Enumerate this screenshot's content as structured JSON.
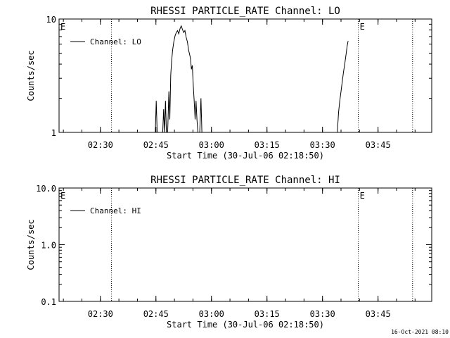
{
  "timestamp": "16-Oct-2021 08:10",
  "chart_data": [
    {
      "type": "line",
      "title": "RHESSI PARTICLE_RATE Channel: LO",
      "xlabel": "Start Time (30-Jul-06 02:18:50)",
      "ylabel": "Counts/sec",
      "yscale": "log",
      "xlim": [
        "02:18:50",
        "03:59:30"
      ],
      "ylim": [
        1,
        10
      ],
      "x_ticks": [
        "02:30",
        "02:45",
        "03:00",
        "03:15",
        "03:30",
        "03:45"
      ],
      "y_ticks": [
        "1",
        "10"
      ],
      "legend": {
        "placement": "top-left",
        "entries": [
          "Channel: LO"
        ]
      },
      "grid": false,
      "event_markers": [
        {
          "time": "02:33:00",
          "style": "dotted",
          "label": ""
        },
        {
          "time": "03:39:40",
          "style": "dotted",
          "label": "E"
        },
        {
          "time": "03:54:20",
          "style": "dotted",
          "label": ""
        },
        {
          "time": "02:18:50",
          "style": "none",
          "label": "E"
        }
      ],
      "series": [
        {
          "name": "Channel: LO",
          "segments": [
            [
              [
                "02:44:50",
                1.0
              ],
              [
                "02:45:05",
                1.9
              ],
              [
                "02:45:20",
                1.0
              ]
            ],
            [
              [
                "02:46:50",
                1.0
              ],
              [
                "02:47:05",
                1.6
              ],
              [
                "02:47:20",
                1.0
              ],
              [
                "02:47:35",
                1.9
              ],
              [
                "02:47:50",
                1.0
              ]
            ],
            [
              [
                "02:48:10",
                1.0
              ],
              [
                "02:48:30",
                2.3
              ],
              [
                "02:48:45",
                1.3
              ],
              [
                "02:49:00",
                3.2
              ],
              [
                "02:49:15",
                4.3
              ],
              [
                "02:49:30",
                5.3
              ],
              [
                "02:49:50",
                6.3
              ],
              [
                "02:50:10",
                7.1
              ],
              [
                "02:50:30",
                7.6
              ],
              [
                "02:50:50",
                7.9
              ],
              [
                "02:51:10",
                7.4
              ],
              [
                "02:51:30",
                8.2
              ],
              [
                "02:51:50",
                8.7
              ],
              [
                "02:52:10",
                8.1
              ],
              [
                "02:52:30",
                7.6
              ],
              [
                "02:52:50",
                7.9
              ],
              [
                "02:53:10",
                6.9
              ],
              [
                "02:53:30",
                6.3
              ],
              [
                "02:53:50",
                5.3
              ],
              [
                "02:54:05",
                4.9
              ],
              [
                "02:54:20",
                4.5
              ],
              [
                "02:54:35",
                3.6
              ],
              [
                "02:54:50",
                3.9
              ],
              [
                "02:55:05",
                2.6
              ],
              [
                "02:55:20",
                1.9
              ],
              [
                "02:55:35",
                1.3
              ],
              [
                "02:55:50",
                1.9
              ],
              [
                "02:56:05",
                1.3
              ],
              [
                "02:56:20",
                1.0
              ]
            ],
            [
              [
                "02:56:50",
                1.0
              ],
              [
                "02:57:10",
                2.0
              ],
              [
                "02:57:25",
                1.0
              ]
            ],
            [
              [
                "03:34:00",
                1.0
              ],
              [
                "03:34:20",
                1.5
              ],
              [
                "03:34:40",
                1.9
              ],
              [
                "03:35:00",
                2.3
              ],
              [
                "03:35:20",
                2.8
              ],
              [
                "03:35:40",
                3.4
              ],
              [
                "03:36:00",
                4.0
              ],
              [
                "03:36:20",
                4.8
              ],
              [
                "03:36:40",
                5.8
              ],
              [
                "03:36:55",
                6.4
              ]
            ]
          ]
        }
      ]
    },
    {
      "type": "line",
      "title": "RHESSI PARTICLE_RATE Channel: HI",
      "xlabel": "Start Time (30-Jul-06 02:18:50)",
      "ylabel": "Counts/sec",
      "yscale": "log",
      "xlim": [
        "02:18:50",
        "03:59:30"
      ],
      "ylim": [
        0.1,
        10.0
      ],
      "x_ticks": [
        "02:30",
        "02:45",
        "03:00",
        "03:15",
        "03:30",
        "03:45"
      ],
      "y_ticks": [
        "0.1",
        "1.0",
        "10.0"
      ],
      "legend": {
        "placement": "top-left",
        "entries": [
          "Channel: HI"
        ]
      },
      "grid": false,
      "event_markers": [
        {
          "time": "02:33:00",
          "style": "dotted",
          "label": ""
        },
        {
          "time": "03:39:40",
          "style": "dotted",
          "label": "E"
        },
        {
          "time": "03:54:20",
          "style": "dotted",
          "label": ""
        },
        {
          "time": "02:18:50",
          "style": "none",
          "label": "E"
        }
      ],
      "series": [
        {
          "name": "Channel: HI",
          "segments": []
        }
      ]
    }
  ]
}
